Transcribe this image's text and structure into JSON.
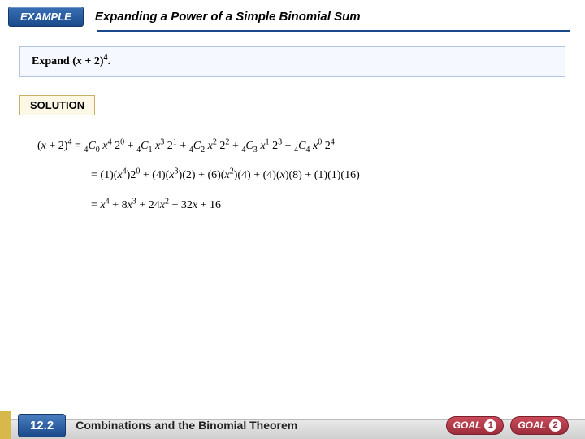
{
  "header": {
    "badge": "EXAMPLE",
    "title": "Expanding a Power of a Simple Binomial Sum"
  },
  "problem": {
    "prefix": "Expand (",
    "var": "x",
    "mid": " + 2)",
    "exp": "4",
    "suffix": "."
  },
  "solution_label": "SOLUTION",
  "lines": {
    "l1": {
      "lhs_open": "(",
      "lhs_var": "x",
      "lhs_mid": " + 2)",
      "lhs_exp": "4",
      "eq": " = ",
      "t0_pre": "",
      "t0_n": "4",
      "t0_C": "C",
      "t0_k": "0",
      "t0_sp": " ",
      "t0_var": "x",
      "t0_varexp": "4",
      "t0_sp2": " ",
      "t0_b": "2",
      "t0_bexp": "0",
      "plus1": " + ",
      "t1_n": "4",
      "t1_C": "C",
      "t1_k": "1",
      "t1_sp": " ",
      "t1_var": "x",
      "t1_varexp": "3",
      "t1_sp2": " ",
      "t1_b": "2",
      "t1_bexp": "1",
      "plus2": " + ",
      "t2_n": "4",
      "t2_C": "C",
      "t2_k": "2",
      "t2_sp": " ",
      "t2_var": "x",
      "t2_varexp": "2",
      "t2_sp2": " ",
      "t2_b": "2",
      "t2_bexp": "2",
      "plus3": " + ",
      "t3_n": "4",
      "t3_C": "C",
      "t3_k": "3",
      "t3_sp": " ",
      "t3_var": "x",
      "t3_varexp": "1",
      "t3_sp2": " ",
      "t3_b": "2",
      "t3_bexp": "3",
      "plus4": " + ",
      "t4_n": "4",
      "t4_C": "C",
      "t4_k": "4",
      "t4_sp": " ",
      "t4_var": "x",
      "t4_varexp": "0",
      "t4_sp2": " ",
      "t4_b": "2",
      "t4_bexp": "4"
    },
    "l2": {
      "eq": "= ",
      "a0_o": "(1)(",
      "a0_v": "x",
      "a0_e": "4",
      "a0_c": ")2",
      "a0_ce": "0",
      "p1": " + ",
      "a1_o": "(4)(",
      "a1_v": "x",
      "a1_e": "3",
      "a1_c": ")(2)",
      "p2": " + ",
      "a2_o": "(6)(",
      "a2_v": "x",
      "a2_e": "2",
      "a2_c": ")(4)",
      "p3": " + ",
      "a3_o": "(4)(",
      "a3_v": "x",
      "a3_c": ")(8)",
      "p4": " + ",
      "a4": "(1)(1)(16)"
    },
    "l3": {
      "eq": "= ",
      "t0_v": "x",
      "t0_e": "4",
      "p1": " + 8",
      "t1_v": "x",
      "t1_e": "3",
      "p2": " + 24",
      "t2_v": "x",
      "t2_e": "2",
      "p3": " + 32",
      "t3_v": "x",
      "p4": " + 16"
    }
  },
  "footer": {
    "section": "12.2",
    "title": "Combinations and the Binomial Theorem",
    "goal_label": "GOAL",
    "goal1": "1",
    "goal2": "2"
  }
}
